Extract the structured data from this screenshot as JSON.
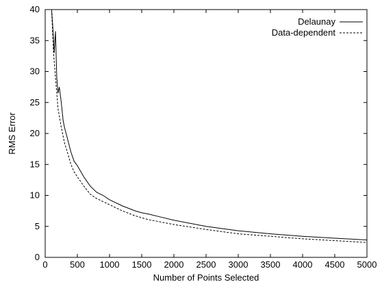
{
  "chart_data": {
    "type": "line",
    "title": "",
    "xlabel": "Number of Points Selected",
    "ylabel": "RMS Error",
    "xlim": [
      0,
      5000
    ],
    "ylim": [
      0,
      40
    ],
    "xticks": [
      0,
      500,
      1000,
      1500,
      2000,
      2500,
      3000,
      3500,
      4000,
      4500,
      5000
    ],
    "yticks": [
      0,
      5,
      10,
      15,
      20,
      25,
      30,
      35,
      40
    ],
    "grid": false,
    "legend_position": "top-right",
    "series": [
      {
        "name": "Delaunay",
        "style": "solid",
        "color": "#000000",
        "x": [
          100,
          120,
          140,
          160,
          180,
          200,
          220,
          250,
          280,
          300,
          350,
          400,
          450,
          500,
          600,
          700,
          800,
          900,
          1000,
          1200,
          1400,
          1500,
          1600,
          1800,
          2000,
          2500,
          3000,
          3500,
          4000,
          4500,
          5000
        ],
        "y": [
          40,
          37,
          33,
          36.5,
          29,
          26.5,
          27.5,
          25,
          22,
          21,
          19,
          17,
          15.5,
          14.8,
          13,
          11.5,
          10.5,
          10,
          9.3,
          8.3,
          7.5,
          7.2,
          7.0,
          6.5,
          6.0,
          5.0,
          4.3,
          3.8,
          3.4,
          3.1,
          2.8
        ]
      },
      {
        "name": "Data-dependent",
        "style": "dashed",
        "color": "#000000",
        "x": [
          100,
          130,
          160,
          200,
          250,
          300,
          350,
          400,
          450,
          500,
          600,
          700,
          800,
          900,
          1000,
          1200,
          1400,
          1600,
          1800,
          2000,
          2500,
          3000,
          3500,
          4000,
          4500,
          5000
        ],
        "y": [
          40,
          33,
          29,
          24,
          21,
          18.5,
          16.8,
          15,
          13.8,
          13,
          11.5,
          10.2,
          9.5,
          9.0,
          8.5,
          7.5,
          6.7,
          6.1,
          5.7,
          5.3,
          4.5,
          3.8,
          3.4,
          3.0,
          2.7,
          2.4
        ]
      }
    ]
  }
}
